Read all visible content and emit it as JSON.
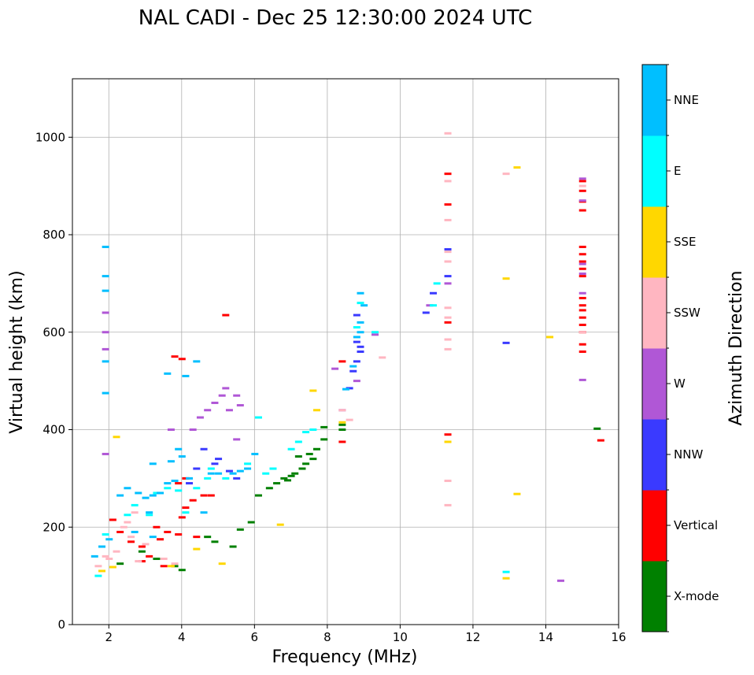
{
  "chart_data": {
    "type": "scatter",
    "title": "NAL CADI - Dec 25 12:30:00 2024 UTC",
    "xlabel": "Frequency (MHz)",
    "ylabel": "Virtual height (km)",
    "xlim": [
      1,
      16
    ],
    "ylim": [
      0,
      1120
    ],
    "xticks": [
      "2",
      "4",
      "6",
      "8",
      "10",
      "12",
      "14",
      "16"
    ],
    "yticks": [
      "0",
      "200",
      "400",
      "600",
      "800",
      "1000"
    ],
    "grid": true,
    "colorbar": {
      "label": "Azimuth Direction",
      "categories": [
        {
          "name": "X-mode",
          "color": "#008000"
        },
        {
          "name": "Vertical",
          "color": "#ff0000"
        },
        {
          "name": "NNW",
          "color": "#3a3aff"
        },
        {
          "name": "W",
          "color": "#b057d6"
        },
        {
          "name": "SSW",
          "color": "#ffb6c1"
        },
        {
          "name": "SSE",
          "color": "#ffd700"
        },
        {
          "name": "E",
          "color": "#00ffff"
        },
        {
          "name": "NNE",
          "color": "#00bfff"
        }
      ]
    },
    "series": [
      {
        "name": "X-mode",
        "points": [
          [
            2.3,
            125
          ],
          [
            2.9,
            150
          ],
          [
            3.3,
            135
          ],
          [
            3.8,
            120
          ],
          [
            4.0,
            112
          ],
          [
            4.7,
            180
          ],
          [
            4.9,
            170
          ],
          [
            5.4,
            160
          ],
          [
            5.6,
            195
          ],
          [
            5.9,
            210
          ],
          [
            6.1,
            265
          ],
          [
            6.4,
            280
          ],
          [
            6.6,
            290
          ],
          [
            6.8,
            300
          ],
          [
            7.0,
            305
          ],
          [
            7.1,
            310
          ],
          [
            7.2,
            345
          ],
          [
            7.3,
            320
          ],
          [
            7.4,
            330
          ],
          [
            7.6,
            340
          ],
          [
            7.7,
            360
          ],
          [
            7.9,
            380
          ],
          [
            7.9,
            405
          ],
          [
            8.4,
            400
          ],
          [
            8.4,
            410
          ],
          [
            15.4,
            402
          ],
          [
            7.5,
            350
          ],
          [
            6.9,
            296
          ]
        ]
      },
      {
        "name": "Vertical",
        "points": [
          [
            2.1,
            215
          ],
          [
            2.3,
            190
          ],
          [
            2.6,
            170
          ],
          [
            2.9,
            160
          ],
          [
            3.1,
            140
          ],
          [
            3.4,
            175
          ],
          [
            3.6,
            190
          ],
          [
            3.9,
            185
          ],
          [
            4.0,
            220
          ],
          [
            4.1,
            240
          ],
          [
            4.3,
            255
          ],
          [
            4.6,
            265
          ],
          [
            4.8,
            265
          ],
          [
            3.9,
            290
          ],
          [
            4.1,
            300
          ],
          [
            3.8,
            550
          ],
          [
            4.0,
            545
          ],
          [
            5.2,
            635
          ],
          [
            3.3,
            200
          ],
          [
            4.4,
            180
          ],
          [
            2.9,
            130
          ],
          [
            3.5,
            120
          ],
          [
            8.4,
            375
          ],
          [
            8.4,
            540
          ],
          [
            11.3,
            620
          ],
          [
            11.3,
            925
          ],
          [
            11.3,
            862
          ],
          [
            11.3,
            390
          ],
          [
            15.0,
            910
          ],
          [
            15.0,
            890
          ],
          [
            15.0,
            868
          ],
          [
            15.0,
            850
          ],
          [
            15.0,
            775
          ],
          [
            15.0,
            760
          ],
          [
            15.0,
            745
          ],
          [
            15.0,
            730
          ],
          [
            15.0,
            715
          ],
          [
            15.0,
            670
          ],
          [
            15.0,
            655
          ],
          [
            15.0,
            645
          ],
          [
            15.0,
            630
          ],
          [
            15.0,
            615
          ],
          [
            15.0,
            600
          ],
          [
            15.0,
            575
          ],
          [
            15.0,
            560
          ],
          [
            15.5,
            378
          ]
        ]
      },
      {
        "name": "NNW",
        "points": [
          [
            4.9,
            330
          ],
          [
            5.0,
            340
          ],
          [
            5.3,
            315
          ],
          [
            5.5,
            300
          ],
          [
            4.6,
            360
          ],
          [
            4.4,
            320
          ],
          [
            8.6,
            485
          ],
          [
            8.7,
            520
          ],
          [
            8.8,
            540
          ],
          [
            8.9,
            560
          ],
          [
            8.8,
            580
          ],
          [
            8.9,
            570
          ],
          [
            8.8,
            635
          ],
          [
            10.7,
            640
          ],
          [
            10.9,
            680
          ],
          [
            11.3,
            715
          ],
          [
            11.3,
            770
          ],
          [
            12.9,
            578
          ],
          [
            4.2,
            290
          ]
        ]
      },
      {
        "name": "W",
        "points": [
          [
            3.7,
            400
          ],
          [
            4.3,
            400
          ],
          [
            4.5,
            425
          ],
          [
            4.7,
            440
          ],
          [
            4.9,
            455
          ],
          [
            5.1,
            470
          ],
          [
            5.2,
            485
          ],
          [
            5.3,
            440
          ],
          [
            5.5,
            470
          ],
          [
            5.6,
            450
          ],
          [
            5.5,
            380
          ],
          [
            8.2,
            525
          ],
          [
            8.4,
            440
          ],
          [
            8.8,
            500
          ],
          [
            9.3,
            595
          ],
          [
            10.8,
            655
          ],
          [
            11.3,
            700
          ],
          [
            14.4,
            90
          ],
          [
            15.0,
            502
          ],
          [
            15.0,
            915
          ],
          [
            15.0,
            870
          ],
          [
            15.0,
            740
          ],
          [
            15.0,
            720
          ],
          [
            15.0,
            680
          ],
          [
            1.9,
            640
          ],
          [
            1.9,
            600
          ],
          [
            1.9,
            565
          ],
          [
            1.9,
            350
          ]
        ]
      },
      {
        "name": "SSW",
        "points": [
          [
            1.7,
            120
          ],
          [
            1.9,
            140
          ],
          [
            2.2,
            150
          ],
          [
            2.4,
            200
          ],
          [
            2.5,
            210
          ],
          [
            2.7,
            230
          ],
          [
            2.6,
            180
          ],
          [
            2.0,
            135
          ],
          [
            2.8,
            130
          ],
          [
            3.0,
            165
          ],
          [
            3.5,
            135
          ],
          [
            3.8,
            125
          ],
          [
            8.4,
            440
          ],
          [
            9.5,
            548
          ],
          [
            11.3,
            1008
          ],
          [
            11.3,
            910
          ],
          [
            11.3,
            830
          ],
          [
            11.3,
            765
          ],
          [
            11.3,
            745
          ],
          [
            11.3,
            650
          ],
          [
            11.3,
            630
          ],
          [
            11.3,
            585
          ],
          [
            11.3,
            565
          ],
          [
            11.3,
            295
          ],
          [
            11.3,
            245
          ],
          [
            12.9,
            925
          ],
          [
            15.0,
            900
          ],
          [
            15.0,
            600
          ],
          [
            8.6,
            420
          ]
        ]
      },
      {
        "name": "SSE",
        "points": [
          [
            2.2,
            385
          ],
          [
            3.7,
            120
          ],
          [
            1.8,
            110
          ],
          [
            4.4,
            155
          ],
          [
            5.1,
            125
          ],
          [
            6.7,
            205
          ],
          [
            7.6,
            480
          ],
          [
            7.7,
            440
          ],
          [
            8.4,
            415
          ],
          [
            11.3,
            375
          ],
          [
            12.9,
            710
          ],
          [
            12.9,
            95
          ],
          [
            13.2,
            268
          ],
          [
            14.1,
            590
          ],
          [
            13.2,
            938
          ],
          [
            2.1,
            118
          ]
        ]
      },
      {
        "name": "E",
        "points": [
          [
            2.5,
            225
          ],
          [
            2.7,
            245
          ],
          [
            3.1,
            225
          ],
          [
            3.3,
            270
          ],
          [
            3.6,
            280
          ],
          [
            3.9,
            275
          ],
          [
            4.1,
            230
          ],
          [
            4.4,
            280
          ],
          [
            4.7,
            300
          ],
          [
            4.8,
            320
          ],
          [
            5.2,
            300
          ],
          [
            5.8,
            330
          ],
          [
            6.1,
            425
          ],
          [
            6.3,
            310
          ],
          [
            6.5,
            320
          ],
          [
            7.0,
            360
          ],
          [
            7.2,
            375
          ],
          [
            7.4,
            395
          ],
          [
            7.6,
            400
          ],
          [
            8.8,
            610
          ],
          [
            8.9,
            660
          ],
          [
            9.3,
            600
          ],
          [
            10.9,
            655
          ],
          [
            11.0,
            700
          ],
          [
            12.9,
            108
          ],
          [
            1.7,
            100
          ],
          [
            1.9,
            185
          ]
        ]
      },
      {
        "name": "NNE",
        "points": [
          [
            1.6,
            140
          ],
          [
            1.8,
            160
          ],
          [
            2.0,
            175
          ],
          [
            2.3,
            265
          ],
          [
            2.5,
            280
          ],
          [
            2.8,
            270
          ],
          [
            3.0,
            260
          ],
          [
            3.2,
            265
          ],
          [
            3.4,
            270
          ],
          [
            3.6,
            290
          ],
          [
            3.8,
            295
          ],
          [
            3.2,
            330
          ],
          [
            3.7,
            335
          ],
          [
            3.9,
            360
          ],
          [
            4.0,
            345
          ],
          [
            4.2,
            300
          ],
          [
            4.8,
            310
          ],
          [
            5.0,
            310
          ],
          [
            5.4,
            310
          ],
          [
            5.6,
            315
          ],
          [
            5.8,
            320
          ],
          [
            6.0,
            350
          ],
          [
            4.6,
            230
          ],
          [
            3.1,
            230
          ],
          [
            2.7,
            190
          ],
          [
            3.2,
            180
          ],
          [
            4.1,
            510
          ],
          [
            4.4,
            540
          ],
          [
            3.6,
            515
          ],
          [
            8.5,
            483
          ],
          [
            8.7,
            530
          ],
          [
            8.8,
            590
          ],
          [
            8.9,
            600
          ],
          [
            8.9,
            620
          ],
          [
            8.9,
            680
          ],
          [
            9.0,
            655
          ],
          [
            1.9,
            775
          ],
          [
            1.9,
            715
          ],
          [
            1.9,
            685
          ],
          [
            1.9,
            540
          ],
          [
            1.9,
            475
          ]
        ]
      }
    ]
  }
}
